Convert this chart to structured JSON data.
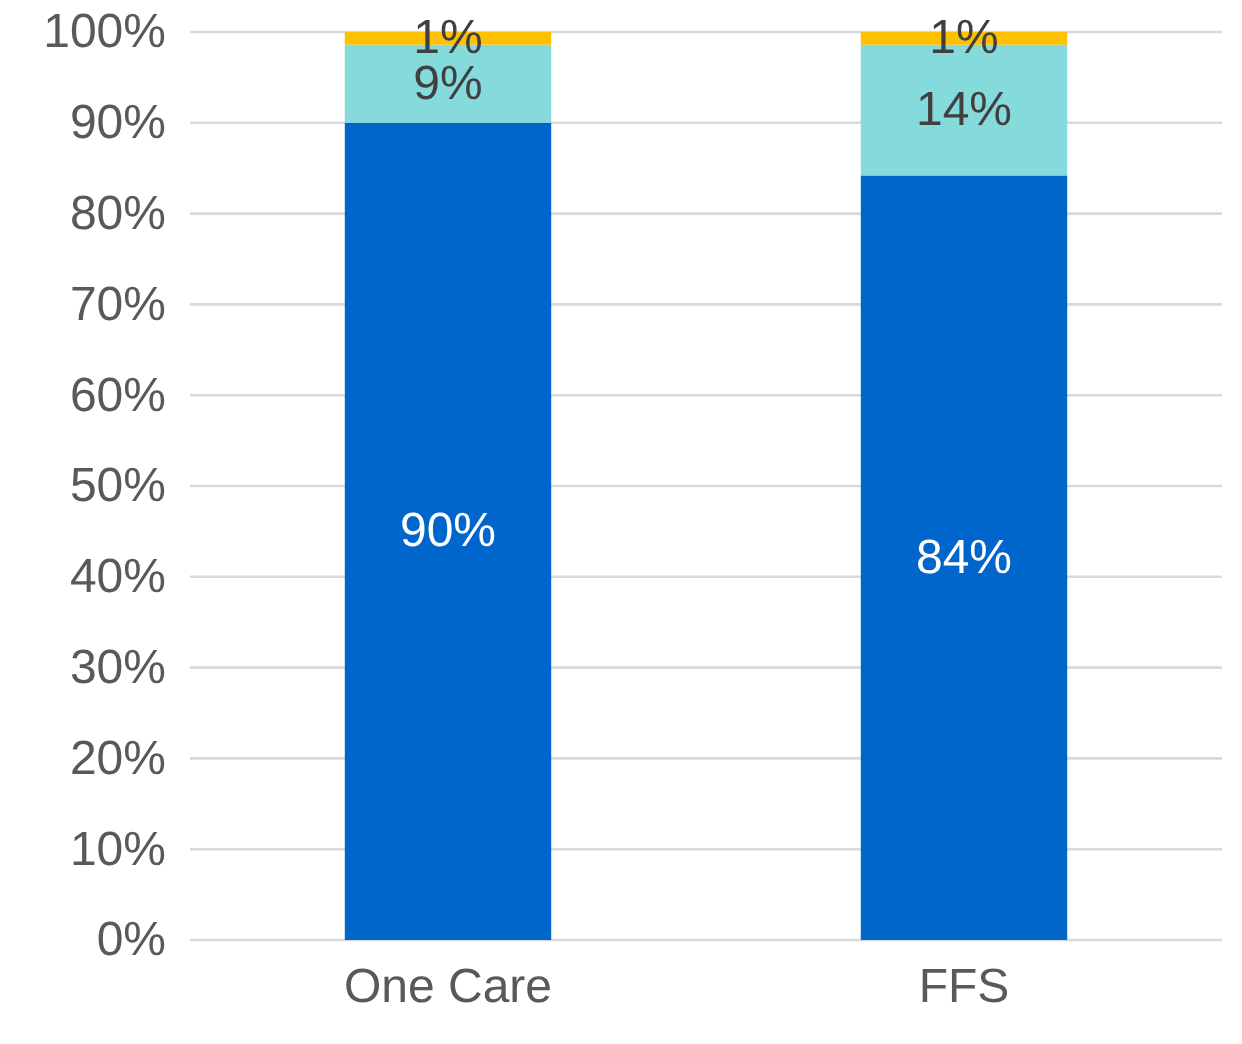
{
  "chart_data": {
    "type": "bar",
    "stacked": true,
    "categories": [
      "One Care",
      "FFS"
    ],
    "series": [
      {
        "color": "#0066cc",
        "values": [
          90,
          84.2
        ],
        "value_labels": [
          "90%",
          "84%"
        ]
      },
      {
        "color": "#85dadc",
        "values": [
          8.6,
          14.4
        ],
        "value_labels": [
          "9%",
          "14%"
        ]
      },
      {
        "color": "#ffc000",
        "values": [
          1.4,
          1.4
        ],
        "value_labels": [
          "1%",
          "1%"
        ]
      }
    ],
    "ylim": [
      0,
      100
    ],
    "yticks": [
      {
        "value": 0,
        "label": "0%"
      },
      {
        "value": 10,
        "label": "10%"
      },
      {
        "value": 20,
        "label": "20%"
      },
      {
        "value": 30,
        "label": "30%"
      },
      {
        "value": 40,
        "label": "40%"
      },
      {
        "value": 50,
        "label": "50%"
      },
      {
        "value": 60,
        "label": "60%"
      },
      {
        "value": 70,
        "label": "70%"
      },
      {
        "value": 80,
        "label": "80%"
      },
      {
        "value": 90,
        "label": "90%"
      },
      {
        "value": 100,
        "label": "100%"
      }
    ],
    "grid": "y"
  }
}
